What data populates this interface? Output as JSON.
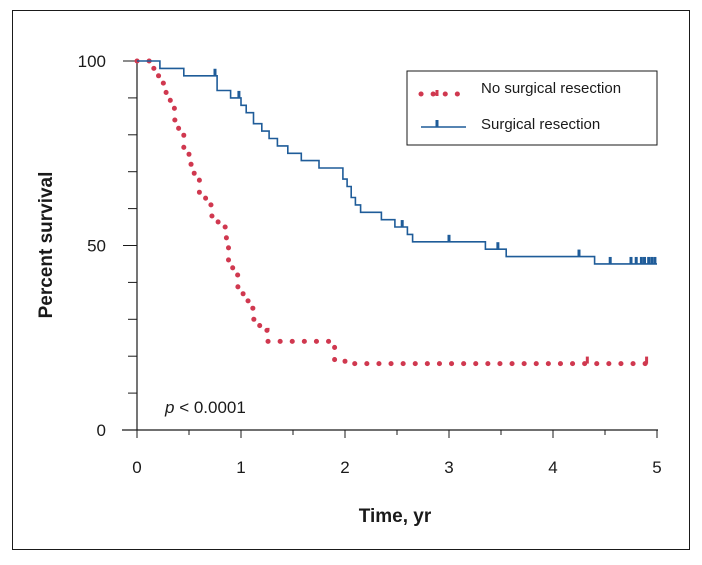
{
  "chart_data": {
    "type": "line",
    "title": "",
    "xlabel": "Time, yr",
    "ylabel": "Percent survival",
    "xlim": [
      0,
      5
    ],
    "ylim": [
      0,
      100
    ],
    "x_ticks": [
      "0",
      "1",
      "2",
      "3",
      "4",
      "5"
    ],
    "y_ticks": [
      "0",
      "50",
      "100"
    ],
    "annotation_p": "p",
    "annotation_rest": " < 0.0001",
    "legend_position": "top-right",
    "colors": {
      "no_surgery": "#d0384f",
      "surgery": "#1f5c99",
      "axis": "#1a1a1a"
    },
    "series": [
      {
        "name": "No surgical resection",
        "style": "dotted",
        "steps": [
          [
            0,
            100
          ],
          [
            0.13,
            100
          ],
          [
            0.13,
            98
          ],
          [
            0.18,
            98
          ],
          [
            0.18,
            96
          ],
          [
            0.23,
            96
          ],
          [
            0.23,
            94
          ],
          [
            0.28,
            94
          ],
          [
            0.28,
            91
          ],
          [
            0.32,
            91
          ],
          [
            0.32,
            88
          ],
          [
            0.36,
            88
          ],
          [
            0.36,
            84
          ],
          [
            0.4,
            84
          ],
          [
            0.4,
            80
          ],
          [
            0.45,
            80
          ],
          [
            0.45,
            76
          ],
          [
            0.5,
            76
          ],
          [
            0.5,
            72
          ],
          [
            0.55,
            72
          ],
          [
            0.55,
            68
          ],
          [
            0.6,
            68
          ],
          [
            0.6,
            64
          ],
          [
            0.66,
            64
          ],
          [
            0.66,
            61
          ],
          [
            0.72,
            61
          ],
          [
            0.72,
            58
          ],
          [
            0.78,
            58
          ],
          [
            0.78,
            55
          ],
          [
            0.86,
            55
          ],
          [
            0.86,
            52
          ],
          [
            0.88,
            52
          ],
          [
            0.88,
            44
          ],
          [
            0.92,
            44
          ],
          [
            0.92,
            42
          ],
          [
            0.97,
            42
          ],
          [
            0.97,
            38
          ],
          [
            1.02,
            38
          ],
          [
            1.02,
            35
          ],
          [
            1.07,
            35
          ],
          [
            1.07,
            33
          ],
          [
            1.12,
            33
          ],
          [
            1.12,
            30
          ],
          [
            1.18,
            30
          ],
          [
            1.18,
            27
          ],
          [
            1.25,
            27
          ],
          [
            1.25,
            24
          ],
          [
            1.9,
            24
          ],
          [
            1.9,
            19
          ],
          [
            2.0,
            19
          ],
          [
            2.0,
            18
          ],
          [
            5.0,
            18
          ]
        ],
        "censor_x": [
          4.33,
          4.9
        ]
      },
      {
        "name": "Surgical resection",
        "style": "solid",
        "steps": [
          [
            0,
            100
          ],
          [
            0.22,
            100
          ],
          [
            0.22,
            98
          ],
          [
            0.45,
            98
          ],
          [
            0.45,
            96
          ],
          [
            0.77,
            96
          ],
          [
            0.77,
            92
          ],
          [
            0.9,
            92
          ],
          [
            0.9,
            90
          ],
          [
            1.0,
            90
          ],
          [
            1.0,
            88
          ],
          [
            1.05,
            88
          ],
          [
            1.05,
            86
          ],
          [
            1.12,
            86
          ],
          [
            1.12,
            83
          ],
          [
            1.2,
            83
          ],
          [
            1.2,
            81
          ],
          [
            1.27,
            81
          ],
          [
            1.27,
            79
          ],
          [
            1.35,
            79
          ],
          [
            1.35,
            77
          ],
          [
            1.45,
            77
          ],
          [
            1.45,
            75
          ],
          [
            1.58,
            75
          ],
          [
            1.58,
            73
          ],
          [
            1.75,
            73
          ],
          [
            1.75,
            71
          ],
          [
            1.98,
            71
          ],
          [
            1.98,
            68
          ],
          [
            2.02,
            68
          ],
          [
            2.02,
            66
          ],
          [
            2.06,
            66
          ],
          [
            2.06,
            63
          ],
          [
            2.1,
            63
          ],
          [
            2.1,
            61
          ],
          [
            2.15,
            61
          ],
          [
            2.15,
            59
          ],
          [
            2.35,
            59
          ],
          [
            2.35,
            57
          ],
          [
            2.48,
            57
          ],
          [
            2.48,
            55
          ],
          [
            2.6,
            55
          ],
          [
            2.6,
            53
          ],
          [
            2.65,
            53
          ],
          [
            2.65,
            51
          ],
          [
            3.35,
            51
          ],
          [
            3.35,
            49
          ],
          [
            3.55,
            49
          ],
          [
            3.55,
            47
          ],
          [
            4.4,
            47
          ],
          [
            4.4,
            45
          ],
          [
            5.0,
            45
          ]
        ],
        "censor_x": [
          0.75,
          0.98,
          2.55,
          3.0,
          3.47,
          4.25,
          4.55,
          4.75,
          4.8,
          4.85,
          4.88,
          4.92,
          4.95,
          4.98
        ]
      }
    ]
  }
}
